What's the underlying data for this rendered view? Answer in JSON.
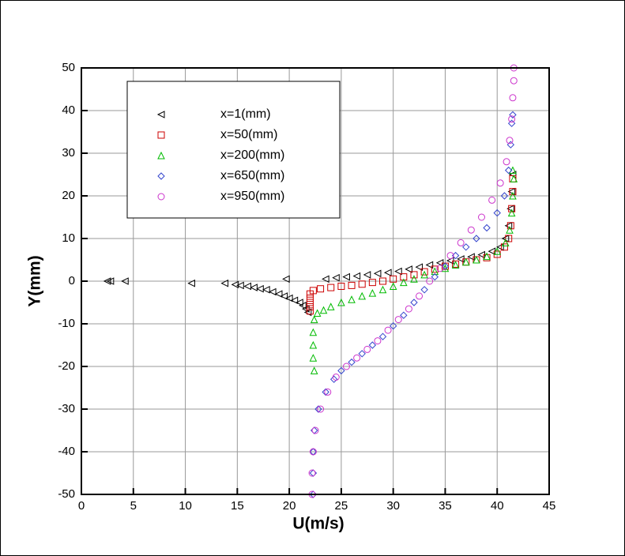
{
  "chart_data": {
    "type": "scatter",
    "x_label": "U(m/s)",
    "y_label": "Y(mm)",
    "xlim": [
      0,
      45
    ],
    "ylim": [
      -50,
      50
    ],
    "xticks": [
      0,
      5,
      10,
      15,
      20,
      25,
      30,
      35,
      40,
      45
    ],
    "yticks": [
      -50,
      -40,
      -30,
      -20,
      -10,
      0,
      10,
      20,
      30,
      40,
      50
    ],
    "grid": true,
    "legend": "upper left",
    "series": [
      {
        "name": "x=1(mm)",
        "color": "#000000",
        "marker": "triangle-left",
        "x": [
          2.5,
          2.8,
          4.2,
          10.6,
          13.8,
          14.8,
          15.3,
          16,
          16.6,
          17.2,
          17.8,
          18.4,
          19,
          19.5,
          20,
          20.5,
          21,
          21.3,
          21.6,
          21.8,
          19.7,
          23.5,
          24.5,
          25.5,
          26.5,
          27.5,
          28.5,
          29.5,
          30.5,
          31.5,
          32.5,
          33.5,
          34.5,
          35.5,
          36.5,
          37.5,
          38.5,
          39.5,
          40.3,
          40.8,
          41.1,
          41.3,
          41.4,
          41.5
        ],
        "y": [
          0,
          0,
          0,
          -0.5,
          -0.5,
          -0.8,
          -1,
          -1.2,
          -1.5,
          -1.8,
          -2,
          -2.5,
          -3,
          -3.5,
          -4,
          -4.5,
          -5,
          -5.7,
          -6.5,
          -7.3,
          0.5,
          0.5,
          0.8,
          1,
          1.2,
          1.5,
          1.8,
          2,
          2.3,
          2.8,
          3.3,
          3.8,
          4.3,
          4.8,
          5.2,
          5.7,
          6.2,
          7,
          8,
          10,
          13,
          17,
          21,
          25
        ]
      },
      {
        "name": "x=50(mm)",
        "color": "#cc0000",
        "marker": "square",
        "x": [
          22,
          22,
          22,
          22,
          22,
          22.3,
          23,
          24,
          25,
          26,
          27,
          28,
          29,
          30,
          31,
          32,
          33,
          34,
          35,
          36,
          37,
          38,
          39,
          40,
          40.7,
          41.1,
          41.3,
          41.4,
          41.5,
          41.5
        ],
        "y": [
          -7,
          -6,
          -5,
          -4,
          -3,
          -2.2,
          -1.8,
          -1.5,
          -1.2,
          -1,
          -0.7,
          -0.3,
          0,
          0.5,
          1,
          1.5,
          2.2,
          2.8,
          3.5,
          4,
          4.5,
          5,
          5.5,
          6.3,
          8,
          10,
          13,
          17,
          21,
          24
        ]
      },
      {
        "name": "x=200(mm)",
        "color": "#00bb00",
        "marker": "triangle-up",
        "x": [
          22.4,
          22.3,
          22.3,
          22.3,
          22.4,
          22.7,
          23.3,
          24,
          25,
          26,
          27,
          28,
          29,
          30,
          31,
          32,
          33,
          34,
          35,
          36,
          37,
          38,
          39,
          40,
          40.8,
          41.2,
          41.4,
          41.5,
          41.6,
          41.5
        ],
        "y": [
          -21,
          -18,
          -15,
          -12,
          -9,
          -7.5,
          -6.8,
          -6,
          -5,
          -4.3,
          -3.5,
          -2.8,
          -2,
          -1.2,
          -0.3,
          0.5,
          1.5,
          2.3,
          3,
          3.8,
          4.5,
          5,
          5.8,
          7,
          9,
          12,
          16,
          20,
          24,
          26
        ]
      },
      {
        "name": "x=650(mm)",
        "color": "#3344cc",
        "marker": "diamond",
        "x": [
          22.3,
          22.3,
          22.3,
          22.4,
          22.8,
          23.5,
          24.3,
          25,
          26,
          27,
          28,
          29,
          30,
          31,
          32,
          33,
          34,
          35,
          36,
          37,
          38,
          39,
          40,
          40.7,
          41.1,
          41.3,
          41.4,
          41.5
        ],
        "y": [
          -50,
          -45,
          -40,
          -35,
          -30,
          -26,
          -23,
          -21,
          -19,
          -17,
          -15,
          -13,
          -10.5,
          -8,
          -5,
          -2,
          1,
          3.5,
          6,
          8,
          10,
          12.5,
          16,
          20,
          26,
          32,
          37,
          39
        ]
      },
      {
        "name": "x=950(mm)",
        "color": "#cc33cc",
        "marker": "circle",
        "x": [
          22.2,
          22.2,
          22.3,
          22.5,
          23,
          23.7,
          24.5,
          25.5,
          26.5,
          27.5,
          28.5,
          29.5,
          30.5,
          31.5,
          32.5,
          33.5,
          34.5,
          35.5,
          36.5,
          37.5,
          38.5,
          39.5,
          40.3,
          40.9,
          41.2,
          41.4,
          41.5,
          41.6,
          41.6
        ],
        "y": [
          -50,
          -45,
          -40,
          -35,
          -30,
          -26,
          -22.5,
          -20,
          -18,
          -16,
          -14,
          -11.5,
          -9,
          -6.5,
          -3.5,
          0,
          3,
          6,
          9,
          12,
          15,
          19,
          23,
          28,
          33,
          38,
          43,
          47,
          50
        ]
      }
    ]
  }
}
